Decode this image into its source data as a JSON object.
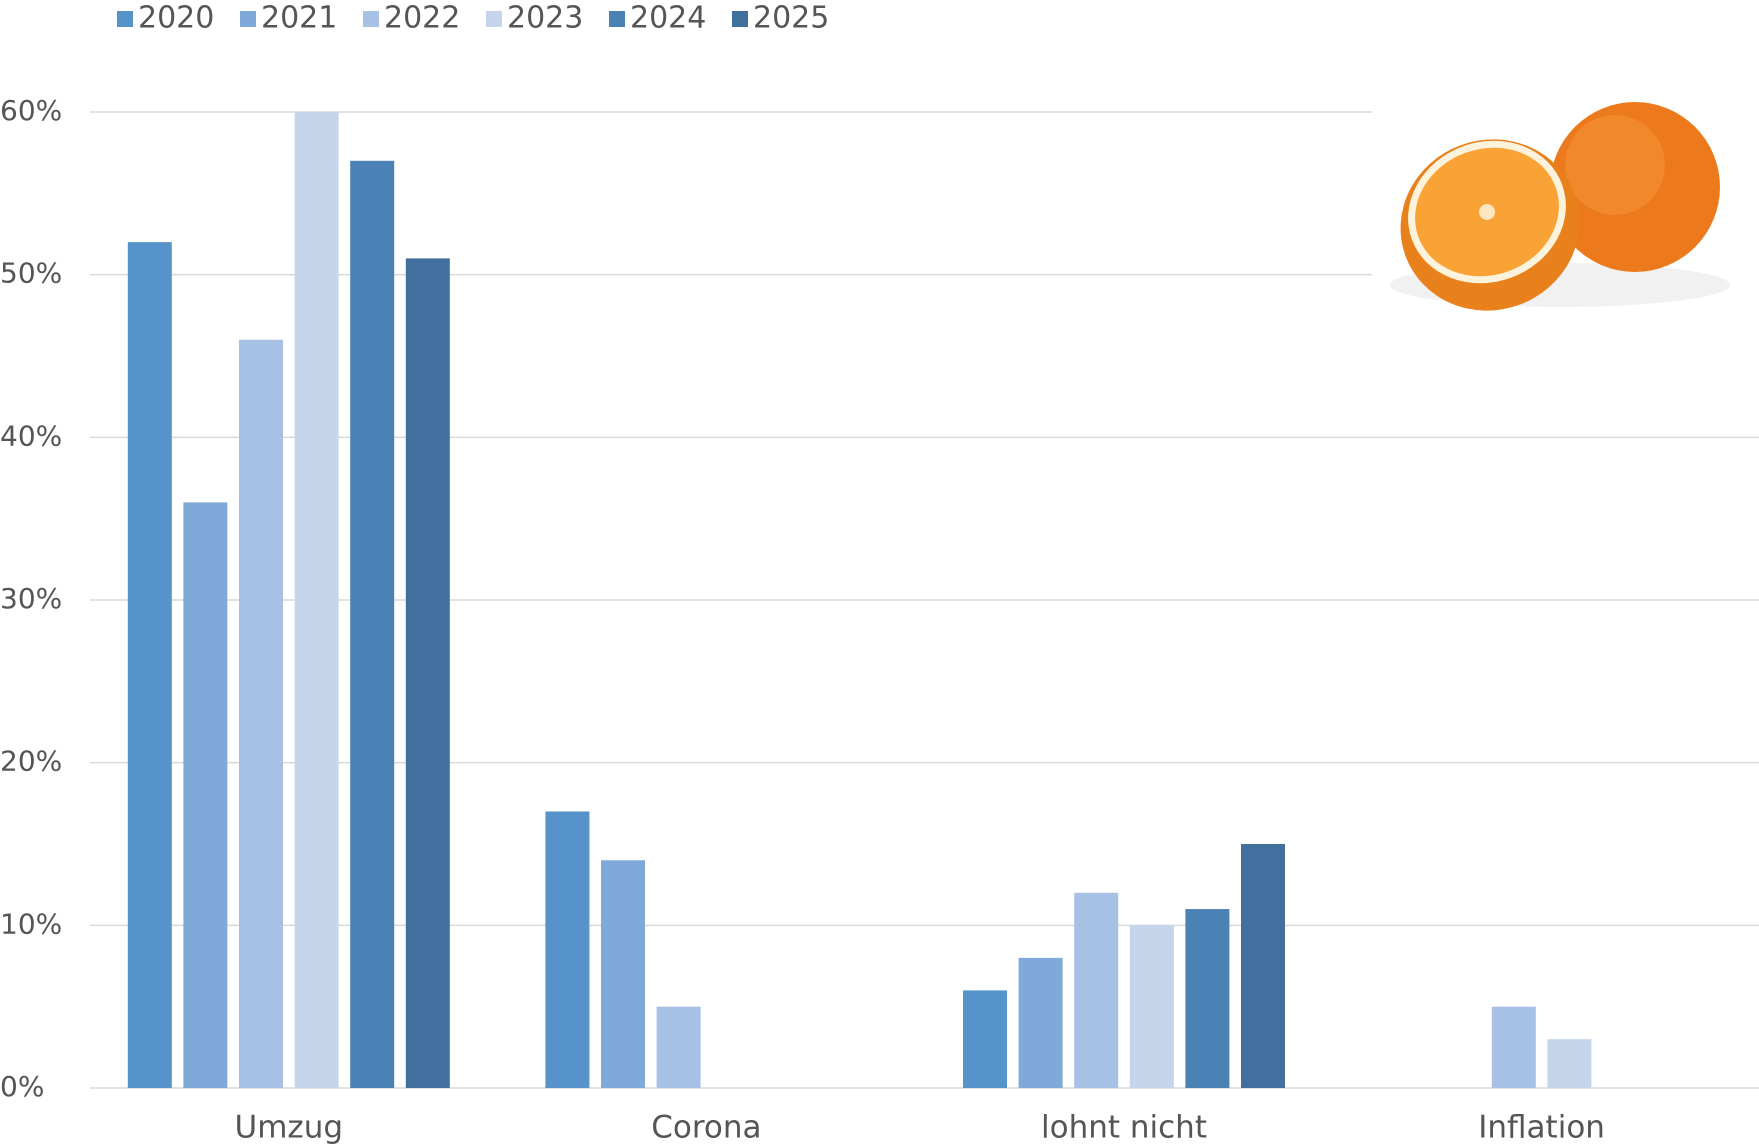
{
  "chart_data": {
    "type": "bar",
    "categories": [
      "Umzug",
      "Corona",
      "lohnt nicht",
      "Inflation"
    ],
    "series": [
      {
        "name": "2020",
        "color": "#5793cb",
        "values": [
          52,
          17,
          6,
          null
        ]
      },
      {
        "name": "2021",
        "color": "#7ea9d9",
        "values": [
          36,
          14,
          8,
          null
        ]
      },
      {
        "name": "2022",
        "color": "#a6c1e3",
        "values": [
          46,
          5,
          12,
          5
        ]
      },
      {
        "name": "2023",
        "color": "#c5d5ec",
        "values": [
          60,
          null,
          10,
          3
        ]
      },
      {
        "name": "2024",
        "color": "#4a82b5",
        "values": [
          57,
          null,
          11,
          null
        ]
      },
      {
        "name": "2025",
        "color": "#41709e",
        "values": [
          51,
          null,
          15,
          null
        ]
      }
    ],
    "ylim": [
      0,
      60
    ],
    "yticks": [
      {
        "value": 0,
        "label": "0%"
      },
      {
        "value": 10,
        "label": "10%"
      },
      {
        "value": 20,
        "label": "20%"
      },
      {
        "value": 30,
        "label": "30%"
      },
      {
        "value": 40,
        "label": "40%"
      },
      {
        "value": 50,
        "label": "50%"
      },
      {
        "value": 60,
        "label": "60%"
      }
    ],
    "grid": true,
    "legend": "top"
  }
}
